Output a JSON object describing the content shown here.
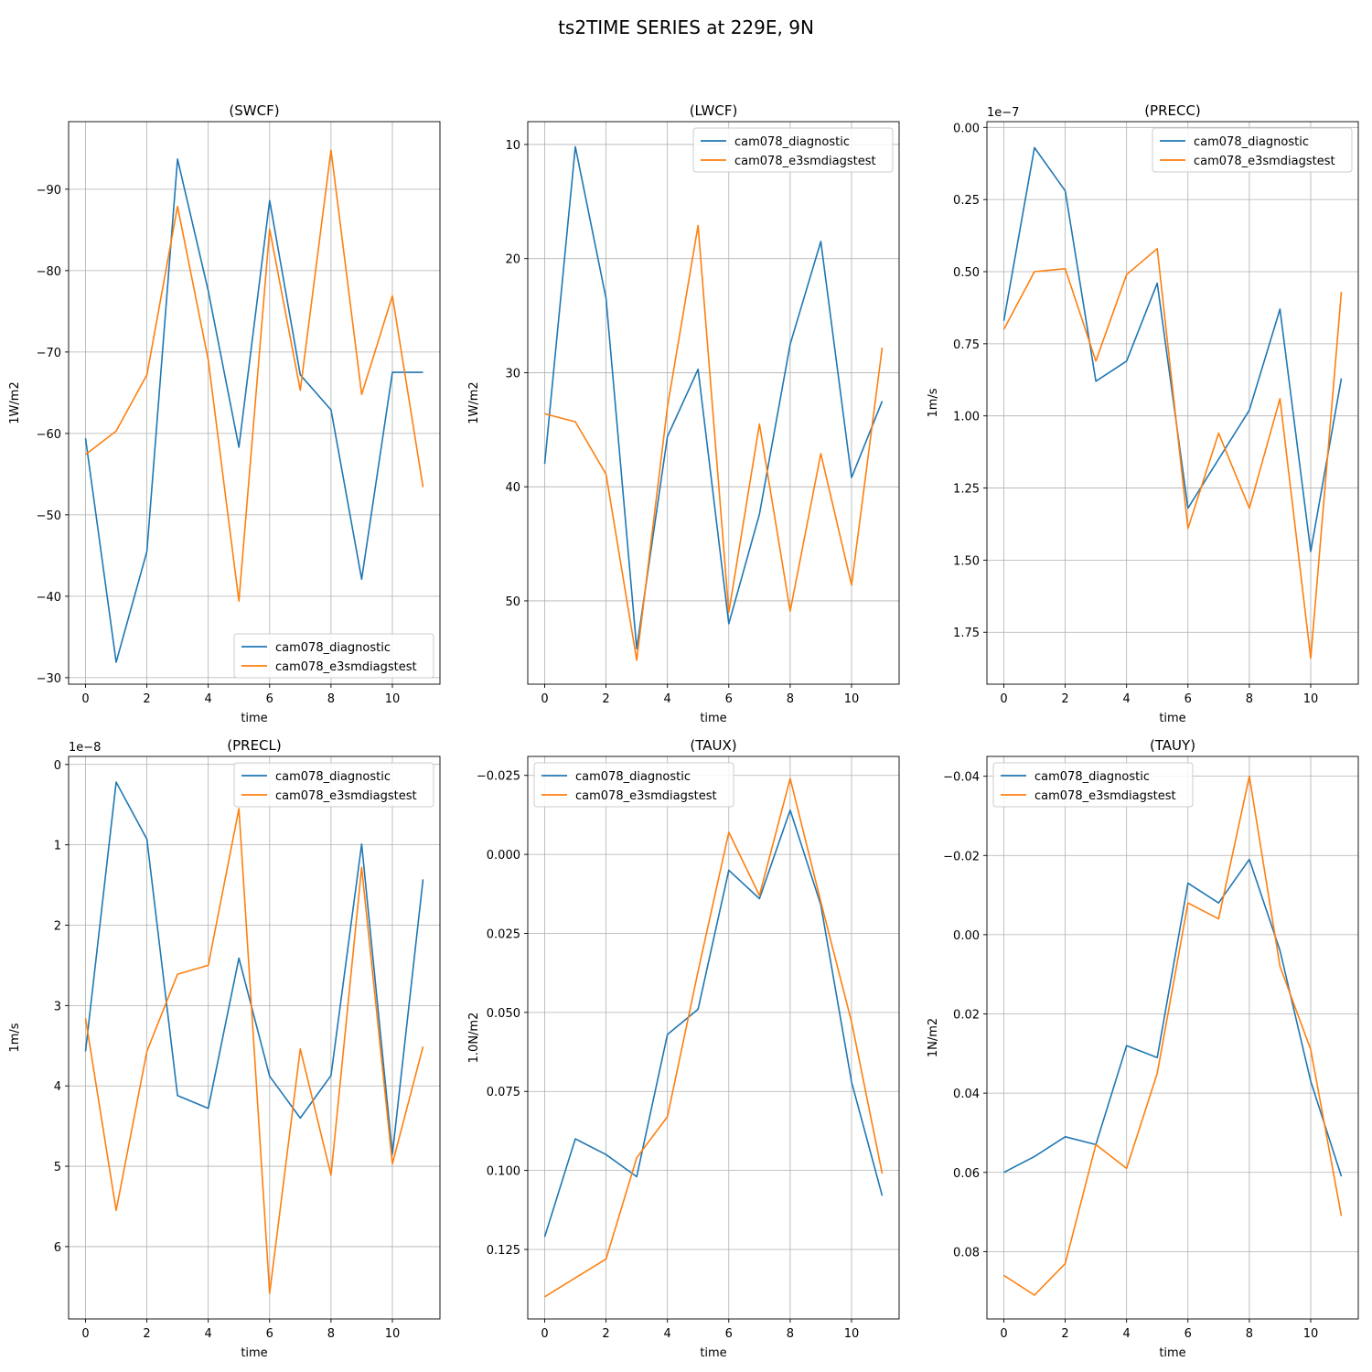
{
  "figure": {
    "suptitle": "ts2TIME SERIES at 229E, 9N",
    "series_names": [
      "cam078_diagnostic",
      "cam078_e3smdiagstest"
    ],
    "series_colors": [
      "#1f77b4",
      "#ff7f0e"
    ]
  },
  "chart_data": [
    {
      "type": "line",
      "title": "(SWCF)",
      "xlabel": "time",
      "ylabel": "1W/m2",
      "x": [
        0,
        1,
        2,
        3,
        4,
        5,
        6,
        7,
        8,
        9,
        10,
        11
      ],
      "xlim": [
        -0.55,
        11.55
      ],
      "ylim": [
        -29.2,
        -98.3
      ],
      "yticks": [
        -90,
        -80,
        -70,
        -60,
        -50,
        -40,
        -30
      ],
      "ytick_labels": [
        "−90",
        "−80",
        "−70",
        "−60",
        "−50",
        "−40",
        "−30"
      ],
      "xticks": [
        0,
        2,
        4,
        6,
        8,
        10
      ],
      "xtick_labels": [
        "0",
        "2",
        "4",
        "6",
        "8",
        "10"
      ],
      "offset_text": "",
      "legend": "lower right",
      "grid": true,
      "series": [
        {
          "name": "cam078_diagnostic",
          "values": [
            -59.4,
            -31.9,
            -45.5,
            -93.7,
            -77.5,
            -58.3,
            -88.6,
            -67.2,
            -62.9,
            -42.1,
            -67.5,
            -67.5
          ]
        },
        {
          "name": "cam078_e3smdiagstest",
          "values": [
            -57.4,
            -60.3,
            -67.2,
            -87.9,
            -69.0,
            -39.4,
            -85.1,
            -65.3,
            -94.8,
            -64.8,
            -76.9,
            -53.4
          ]
        }
      ]
    },
    {
      "type": "line",
      "title": "(LWCF)",
      "xlabel": "time",
      "ylabel": "1W/m2",
      "x": [
        0,
        1,
        2,
        3,
        4,
        5,
        6,
        7,
        8,
        9,
        10,
        11
      ],
      "xlim": [
        -0.55,
        11.55
      ],
      "ylim": [
        57.3,
        8.0
      ],
      "yticks": [
        10,
        20,
        30,
        40,
        50
      ],
      "ytick_labels": [
        "10",
        "20",
        "30",
        "40",
        "50"
      ],
      "xticks": [
        0,
        2,
        4,
        6,
        8,
        10
      ],
      "xtick_labels": [
        "0",
        "2",
        "4",
        "6",
        "8",
        "10"
      ],
      "offset_text": "",
      "legend": "upper right",
      "grid": true,
      "series": [
        {
          "name": "cam078_diagnostic",
          "values": [
            38.0,
            10.2,
            23.5,
            54.2,
            35.6,
            29.7,
            52.0,
            42.4,
            27.5,
            18.5,
            39.2,
            32.5
          ]
        },
        {
          "name": "cam078_e3smdiagstest",
          "values": [
            33.6,
            34.3,
            38.9,
            55.2,
            33.0,
            17.1,
            51.0,
            34.5,
            50.9,
            37.1,
            48.6,
            27.8
          ]
        }
      ]
    },
    {
      "type": "line",
      "title": "(PRECC)",
      "xlabel": "time",
      "ylabel": "1m/s",
      "x": [
        0,
        1,
        2,
        3,
        4,
        5,
        6,
        7,
        8,
        9,
        10,
        11
      ],
      "xlim": [
        -0.55,
        11.55
      ],
      "ylim": [
        1.93,
        -0.02
      ],
      "yticks": [
        0.0,
        0.25,
        0.5,
        0.75,
        1.0,
        1.25,
        1.5,
        1.75
      ],
      "ytick_labels": [
        "0.00",
        "0.25",
        "0.50",
        "0.75",
        "1.00",
        "1.25",
        "1.50",
        "1.75"
      ],
      "xticks": [
        0,
        2,
        4,
        6,
        8,
        10
      ],
      "xtick_labels": [
        "0",
        "2",
        "4",
        "6",
        "8",
        "10"
      ],
      "offset_text": "1e−7",
      "legend": "upper right",
      "grid": true,
      "series": [
        {
          "name": "cam078_diagnostic",
          "values": [
            0.67,
            0.07,
            0.22,
            0.88,
            0.81,
            0.54,
            1.32,
            1.15,
            0.98,
            0.63,
            1.47,
            0.87
          ]
        },
        {
          "name": "cam078_e3smdiagstest",
          "values": [
            0.7,
            0.5,
            0.49,
            0.81,
            0.51,
            0.42,
            1.39,
            1.06,
            1.32,
            0.94,
            1.84,
            0.57
          ]
        }
      ]
    },
    {
      "type": "line",
      "title": "(PRECL)",
      "xlabel": "time",
      "ylabel": "1m/s",
      "x": [
        0,
        1,
        2,
        3,
        4,
        5,
        6,
        7,
        8,
        9,
        10,
        11
      ],
      "xlim": [
        -0.55,
        11.55
      ],
      "ylim": [
        6.9,
        -0.1
      ],
      "yticks": [
        0,
        1,
        2,
        3,
        4,
        5,
        6
      ],
      "ytick_labels": [
        "0",
        "1",
        "2",
        "3",
        "4",
        "5",
        "6"
      ],
      "xticks": [
        0,
        2,
        4,
        6,
        8,
        10
      ],
      "xtick_labels": [
        "0",
        "2",
        "4",
        "6",
        "8",
        "10"
      ],
      "offset_text": "1e−8",
      "legend": "upper right",
      "grid": true,
      "series": [
        {
          "name": "cam078_diagnostic",
          "values": [
            3.57,
            0.22,
            0.93,
            4.12,
            4.28,
            2.41,
            3.88,
            4.4,
            3.87,
            0.99,
            4.85,
            1.43
          ]
        },
        {
          "name": "cam078_e3smdiagstest",
          "values": [
            3.16,
            5.55,
            3.57,
            2.61,
            2.5,
            0.55,
            6.58,
            3.54,
            5.11,
            1.28,
            4.97,
            3.51
          ]
        }
      ]
    },
    {
      "type": "line",
      "title": "(TAUX)",
      "xlabel": "time",
      "ylabel": "1.0N/m2",
      "x": [
        0,
        1,
        2,
        3,
        4,
        5,
        6,
        7,
        8,
        9,
        10,
        11
      ],
      "xlim": [
        -0.55,
        11.55
      ],
      "ylim": [
        0.147,
        -0.031
      ],
      "yticks": [
        -0.025,
        0.0,
        0.025,
        0.05,
        0.075,
        0.1,
        0.125
      ],
      "ytick_labels": [
        "−0.025",
        "0.000",
        "0.025",
        "0.050",
        "0.075",
        "0.100",
        "0.125"
      ],
      "xticks": [
        0,
        2,
        4,
        6,
        8,
        10
      ],
      "xtick_labels": [
        "0",
        "2",
        "4",
        "6",
        "8",
        "10"
      ],
      "offset_text": "",
      "legend": "upper left",
      "grid": true,
      "series": [
        {
          "name": "cam078_diagnostic",
          "values": [
            0.121,
            0.09,
            0.095,
            0.102,
            0.057,
            0.049,
            0.005,
            0.014,
            -0.014,
            0.016,
            0.072,
            0.108
          ]
        },
        {
          "name": "cam078_e3smdiagstest",
          "values": [
            0.14,
            0.134,
            0.128,
            0.096,
            0.083,
            0.037,
            -0.007,
            0.013,
            -0.024,
            0.015,
            0.053,
            0.101
          ]
        }
      ]
    },
    {
      "type": "line",
      "title": "(TAUY)",
      "xlabel": "time",
      "ylabel": "1N/m2",
      "x": [
        0,
        1,
        2,
        3,
        4,
        5,
        6,
        7,
        8,
        9,
        10,
        11
      ],
      "xlim": [
        -0.55,
        11.55
      ],
      "ylim": [
        0.097,
        -0.045
      ],
      "yticks": [
        -0.04,
        -0.02,
        0.0,
        0.02,
        0.04,
        0.06,
        0.08
      ],
      "ytick_labels": [
        "−0.04",
        "−0.02",
        "0.00",
        "0.02",
        "0.04",
        "0.06",
        "0.08"
      ],
      "xticks": [
        0,
        2,
        4,
        6,
        8,
        10
      ],
      "xtick_labels": [
        "0",
        "2",
        "4",
        "6",
        "8",
        "10"
      ],
      "offset_text": "",
      "legend": "upper left",
      "grid": true,
      "series": [
        {
          "name": "cam078_diagnostic",
          "values": [
            0.06,
            0.056,
            0.051,
            0.053,
            0.028,
            0.031,
            -0.013,
            -0.008,
            -0.019,
            0.004,
            0.037,
            0.061
          ]
        },
        {
          "name": "cam078_e3smdiagstest",
          "values": [
            0.086,
            0.091,
            0.083,
            0.053,
            0.059,
            0.035,
            -0.008,
            -0.004,
            -0.04,
            0.008,
            0.029,
            0.071
          ]
        }
      ]
    }
  ]
}
